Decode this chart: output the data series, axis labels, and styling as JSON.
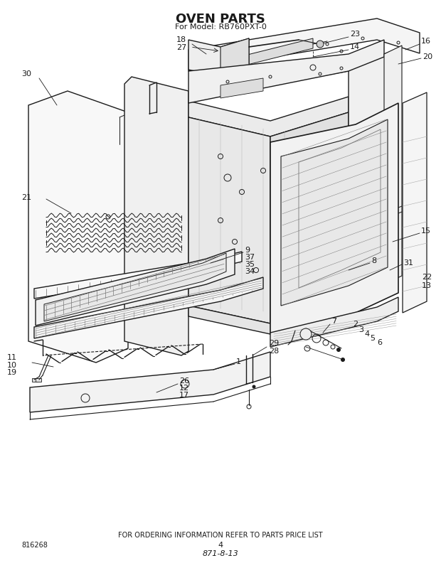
{
  "title": "OVEN PARTS",
  "subtitle": "For Model: RB760PXT-0",
  "footer_text": "FOR ORDERING INFORMATION REFER TO PARTS PRICE LIST",
  "bottom_left_code": "816268",
  "bottom_center_num": "4",
  "bottom_italic": "871-8-13",
  "bg_color": "#ffffff",
  "lc": "#1a1a1a",
  "title_fontsize": 13,
  "subtitle_fontsize": 8,
  "footer_fontsize": 7,
  "label_fontsize": 8
}
